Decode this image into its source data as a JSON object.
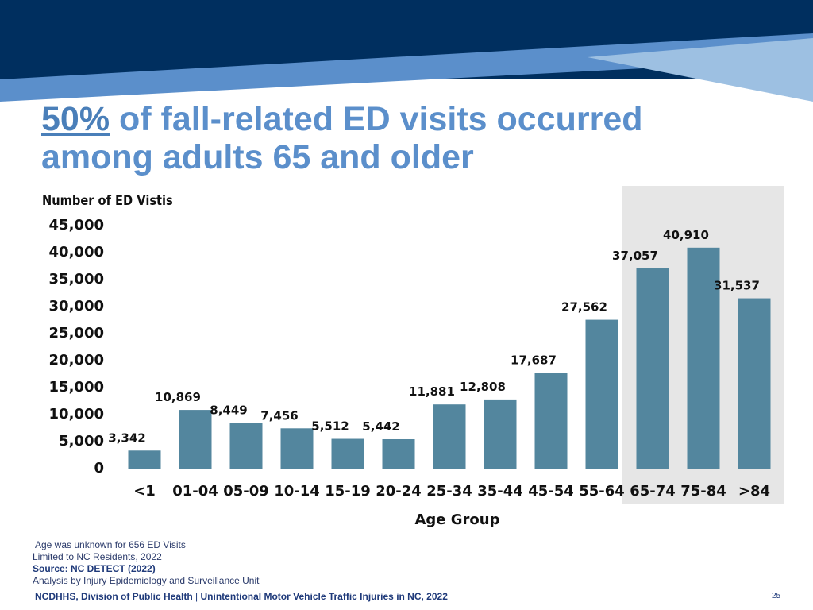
{
  "title": {
    "highlight": "50%",
    "rest": " of fall-related ED visits occurred among adults 65 and older"
  },
  "chart_data": {
    "type": "bar",
    "ylabel": "Number of ED Vistis",
    "xlabel": "Age Group",
    "ylim": [
      0,
      45000
    ],
    "yticks": [
      "45,000",
      "40,000",
      "35,000",
      "30,000",
      "25,000",
      "20,000",
      "15,000",
      "10,000",
      "5,000",
      "0"
    ],
    "categories": [
      "<1",
      "01-04",
      "05-09",
      "10-14",
      "15-19",
      "20-24",
      "25-34",
      "35-44",
      "45-54",
      "55-64",
      "65-74",
      "75-84",
      ">84"
    ],
    "values": [
      3342,
      10869,
      8449,
      7456,
      5512,
      5442,
      11881,
      12808,
      17687,
      27562,
      37057,
      40910,
      31537
    ],
    "data_labels": [
      "3,342",
      "10,869",
      "8,449",
      "7,456",
      "5,512",
      "5,442",
      "11,881",
      "12,808",
      "17,687",
      "27,562",
      "37,057",
      "40,910",
      "31,537"
    ],
    "highlighted_categories": [
      "65-74",
      "75-84",
      ">84"
    ],
    "bar_color": "#53869e",
    "highlight_bg": "#e6e6e6",
    "grid": false,
    "legend": "none"
  },
  "notes": {
    "unknown": "Age was unknown for 656 ED Visits",
    "scope": "Limited to NC Residents, 2022",
    "source": "Source: NC DETECT (2022)",
    "analysis": "Analysis by Injury Epidemiology and Surveillance Unit"
  },
  "footer": {
    "org": "NCDHHS, Division of Public Health",
    "separator": " | ",
    "topic": "Unintentional Motor Vehicle Traffic Injuries in NC, 2022",
    "page": "25"
  },
  "colors": {
    "banner_dark": "#002f5f",
    "banner_mid": "#5b8fcb",
    "banner_light": "#9dc0e2",
    "title": "#5b8fcb"
  }
}
